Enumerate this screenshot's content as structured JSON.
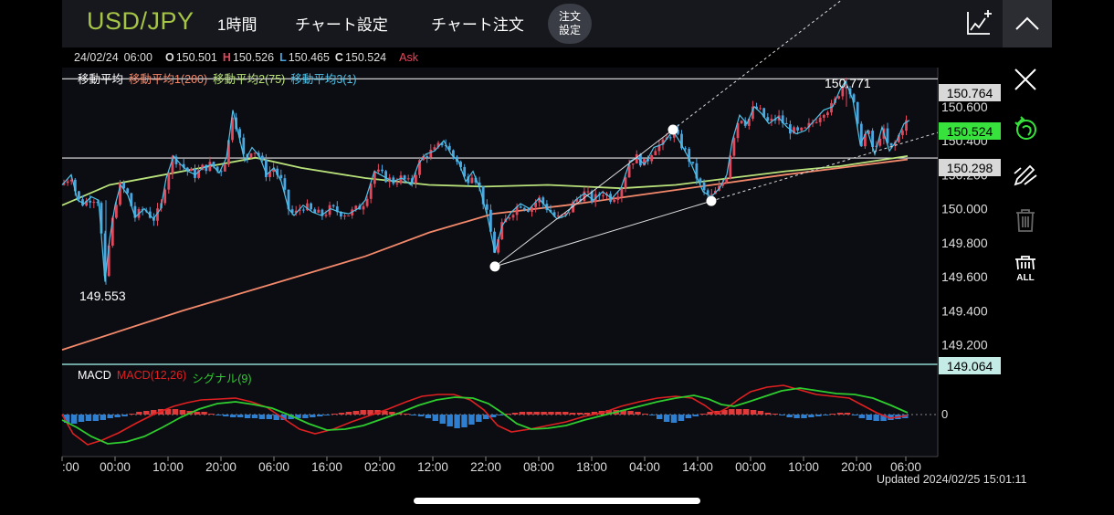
{
  "header": {
    "symbol": "USD/JPY",
    "timeframe": "1時間",
    "chart_settings": "チャート設定",
    "chart_order": "チャート注文",
    "order_settings_line1": "注文",
    "order_settings_line2": "設定"
  },
  "info_bar": {
    "date": "24/02/24",
    "time": "06:00",
    "open_label": "O",
    "open": "150.501",
    "high_label": "H",
    "high": "150.526",
    "low_label": "L",
    "low": "150.465",
    "close_label": "C",
    "close": "150.524",
    "price_type": "Ask"
  },
  "ma_legend": {
    "title": "移動平均",
    "ma1": "移動平均1(200)",
    "ma2": "移動平均2(75)",
    "ma3": "移動平均3(1)"
  },
  "macd_legend": {
    "title": "MACD",
    "macd": "MACD(12,26)",
    "signal": "シグナル(9)"
  },
  "annotations": {
    "high_label": "150.771",
    "low_label": "149.553"
  },
  "price_boxes": {
    "line_high": "150.764",
    "current": "150.524",
    "line_low": "150.298",
    "macd_top": "149.064"
  },
  "macd_zero_label": "0",
  "updated": "Updated  2024/02/25 15:01:11",
  "colors": {
    "ma1": "#f4896b",
    "ma2": "#b9e27a",
    "ma3": "#4fc3e8",
    "bull": "#e2495d",
    "bear": "#4ba6e0",
    "macd": "#e02020",
    "signal": "#2ecc2e",
    "hist_pos": "#e03a3a",
    "hist_neg": "#2f7fd0",
    "current_price": "#37e23c",
    "symbol": "#a6c445"
  },
  "icons": {
    "add_indicator": "chart-add-icon",
    "collapse": "chevron-up-icon",
    "close": "close-icon",
    "magnet": "magnet-icon",
    "draw": "pencil-draw-icon",
    "delete": "trash-icon",
    "delete_all": "trash-all-icon",
    "delete_all_label": "ALL"
  },
  "chart_data": {
    "type": "candlestick",
    "y_ticks": [
      "150.600",
      "150.400",
      "150.200",
      "150.000",
      "149.800",
      "149.600",
      "149.400",
      "149.200"
    ],
    "y_tick_values": [
      150.6,
      150.4,
      150.2,
      150.0,
      149.8,
      149.6,
      149.4,
      149.2
    ],
    "ylim": [
      149.09,
      150.83
    ],
    "x_ticks": [
      ":00",
      "00:00",
      "10:00",
      "20:00",
      "06:00",
      "16:00",
      "02:00",
      "12:00",
      "22:00",
      "08:00",
      "18:00",
      "04:00",
      "14:00",
      "00:00",
      "10:00",
      "20:00",
      "06:00"
    ],
    "horizontal_lines": [
      150.764,
      150.298
    ],
    "last_close": 150.524,
    "channel": {
      "upper": [
        [
          542,
          149.66
        ],
        [
          737,
          150.465
        ]
      ],
      "lower": [
        [
          542,
          149.66
        ],
        [
          779,
          150.045
        ]
      ],
      "extended_to": 1027
    },
    "price_path": [
      [
        68,
        150.14
      ],
      [
        78,
        150.2
      ],
      [
        85,
        150.05
      ],
      [
        92,
        150.03
      ],
      [
        100,
        150.07
      ],
      [
        108,
        150.05
      ],
      [
        115,
        149.57
      ],
      [
        120,
        149.82
      ],
      [
        126,
        150.02
      ],
      [
        132,
        150.14
      ],
      [
        140,
        150.08
      ],
      [
        148,
        149.95
      ],
      [
        158,
        150.0
      ],
      [
        168,
        149.94
      ],
      [
        176,
        150.0
      ],
      [
        182,
        150.18
      ],
      [
        190,
        150.31
      ],
      [
        198,
        150.26
      ],
      [
        206,
        150.22
      ],
      [
        214,
        150.2
      ],
      [
        222,
        150.24
      ],
      [
        232,
        150.26
      ],
      [
        240,
        150.21
      ],
      [
        248,
        150.3
      ],
      [
        255,
        150.58
      ],
      [
        262,
        150.42
      ],
      [
        268,
        150.28
      ],
      [
        276,
        150.36
      ],
      [
        284,
        150.31
      ],
      [
        292,
        150.2
      ],
      [
        300,
        150.24
      ],
      [
        308,
        150.16
      ],
      [
        316,
        150.0
      ],
      [
        322,
        149.96
      ],
      [
        332,
        150.02
      ],
      [
        342,
        149.98
      ],
      [
        352,
        149.96
      ],
      [
        362,
        150.0
      ],
      [
        372,
        149.98
      ],
      [
        382,
        149.97
      ],
      [
        392,
        150.0
      ],
      [
        400,
        150.05
      ],
      [
        410,
        150.22
      ],
      [
        420,
        150.19
      ],
      [
        430,
        150.16
      ],
      [
        440,
        150.18
      ],
      [
        450,
        150.14
      ],
      [
        458,
        150.26
      ],
      [
        466,
        150.32
      ],
      [
        476,
        150.34
      ],
      [
        486,
        150.4
      ],
      [
        494,
        150.32
      ],
      [
        502,
        150.28
      ],
      [
        510,
        150.16
      ],
      [
        518,
        150.22
      ],
      [
        526,
        150.11
      ],
      [
        534,
        149.95
      ],
      [
        542,
        149.74
      ],
      [
        550,
        149.9
      ],
      [
        560,
        149.98
      ],
      [
        570,
        150.03
      ],
      [
        580,
        150.0
      ],
      [
        590,
        150.06
      ],
      [
        600,
        150.0
      ],
      [
        610,
        149.94
      ],
      [
        620,
        149.96
      ],
      [
        630,
        150.05
      ],
      [
        640,
        150.09
      ],
      [
        650,
        150.05
      ],
      [
        660,
        150.1
      ],
      [
        670,
        150.06
      ],
      [
        680,
        150.12
      ],
      [
        690,
        150.28
      ],
      [
        698,
        150.3
      ],
      [
        706,
        150.26
      ],
      [
        716,
        150.36
      ],
      [
        726,
        150.38
      ],
      [
        737,
        150.46
      ],
      [
        746,
        150.38
      ],
      [
        754,
        150.3
      ],
      [
        762,
        150.2
      ],
      [
        770,
        150.1
      ],
      [
        779,
        150.07
      ],
      [
        788,
        150.12
      ],
      [
        796,
        150.2
      ],
      [
        802,
        150.4
      ],
      [
        810,
        150.55
      ],
      [
        818,
        150.5
      ],
      [
        826,
        150.6
      ],
      [
        834,
        150.56
      ],
      [
        842,
        150.5
      ],
      [
        852,
        150.54
      ],
      [
        862,
        150.48
      ],
      [
        872,
        150.44
      ],
      [
        882,
        150.46
      ],
      [
        892,
        150.52
      ],
      [
        902,
        150.58
      ],
      [
        912,
        150.6
      ],
      [
        920,
        150.7
      ],
      [
        926,
        150.75
      ],
      [
        934,
        150.64
      ],
      [
        942,
        150.38
      ],
      [
        950,
        150.46
      ],
      [
        958,
        150.32
      ],
      [
        966,
        150.48
      ],
      [
        974,
        150.34
      ],
      [
        982,
        150.4
      ],
      [
        990,
        150.5
      ],
      [
        996,
        150.52
      ]
    ],
    "ma1_path": [
      [
        68,
        149.17
      ],
      [
        200,
        149.4
      ],
      [
        300,
        149.56
      ],
      [
        400,
        149.72
      ],
      [
        470,
        149.86
      ],
      [
        540,
        149.97
      ],
      [
        620,
        150.02
      ],
      [
        700,
        150.08
      ],
      [
        780,
        150.14
      ],
      [
        860,
        150.2
      ],
      [
        920,
        150.24
      ],
      [
        994,
        150.29
      ]
    ],
    "ma2_path": [
      [
        68,
        150.02
      ],
      [
        120,
        150.14
      ],
      [
        180,
        150.2
      ],
      [
        240,
        150.26
      ],
      [
        280,
        150.3
      ],
      [
        330,
        150.24
      ],
      [
        400,
        150.18
      ],
      [
        470,
        150.14
      ],
      [
        530,
        150.13
      ],
      [
        600,
        150.14
      ],
      [
        680,
        150.12
      ],
      [
        740,
        150.14
      ],
      [
        800,
        150.18
      ],
      [
        860,
        150.22
      ],
      [
        920,
        150.25
      ],
      [
        994,
        150.31
      ]
    ],
    "macd_path": [
      [
        68,
        454
      ],
      [
        80,
        475
      ],
      [
        96,
        487
      ],
      [
        112,
        482
      ],
      [
        130,
        474
      ],
      [
        150,
        463
      ],
      [
        170,
        453
      ],
      [
        190,
        445
      ],
      [
        205,
        441
      ],
      [
        220,
        438
      ],
      [
        240,
        437
      ],
      [
        258,
        436
      ],
      [
        275,
        440
      ],
      [
        292,
        446
      ],
      [
        310,
        458
      ],
      [
        328,
        470
      ],
      [
        345,
        475
      ],
      [
        365,
        470
      ],
      [
        385,
        462
      ],
      [
        405,
        455
      ],
      [
        425,
        448
      ],
      [
        445,
        440
      ],
      [
        462,
        434
      ],
      [
        480,
        432
      ],
      [
        497,
        432
      ],
      [
        515,
        438
      ],
      [
        530,
        449
      ],
      [
        545,
        466
      ],
      [
        560,
        473
      ],
      [
        580,
        470
      ],
      [
        600,
        466
      ],
      [
        620,
        462
      ],
      [
        640,
        456
      ],
      [
        660,
        452
      ],
      [
        680,
        445
      ],
      [
        700,
        440
      ],
      [
        720,
        436
      ],
      [
        740,
        434
      ],
      [
        758,
        436
      ],
      [
        772,
        444
      ],
      [
        784,
        453
      ],
      [
        796,
        447
      ],
      [
        808,
        438
      ],
      [
        822,
        429
      ],
      [
        840,
        424
      ],
      [
        858,
        422
      ],
      [
        876,
        427
      ],
      [
        894,
        432
      ],
      [
        912,
        434
      ],
      [
        930,
        436
      ],
      [
        945,
        444
      ],
      [
        960,
        452
      ],
      [
        975,
        458
      ],
      [
        994,
        455
      ]
    ],
    "signal_path": [
      [
        68,
        460
      ],
      [
        84,
        468
      ],
      [
        100,
        478
      ],
      [
        118,
        486
      ],
      [
        138,
        484
      ],
      [
        158,
        478
      ],
      [
        178,
        468
      ],
      [
        198,
        457
      ],
      [
        218,
        448
      ],
      [
        238,
        442
      ],
      [
        258,
        440
      ],
      [
        278,
        443
      ],
      [
        298,
        447
      ],
      [
        318,
        455
      ],
      [
        338,
        464
      ],
      [
        358,
        471
      ],
      [
        378,
        470
      ],
      [
        398,
        466
      ],
      [
        418,
        459
      ],
      [
        438,
        452
      ],
      [
        458,
        444
      ],
      [
        478,
        438
      ],
      [
        498,
        435
      ],
      [
        518,
        436
      ],
      [
        535,
        442
      ],
      [
        550,
        452
      ],
      [
        566,
        464
      ],
      [
        582,
        470
      ],
      [
        600,
        469
      ],
      [
        620,
        466
      ],
      [
        640,
        460
      ],
      [
        660,
        455
      ],
      [
        680,
        450
      ],
      [
        700,
        445
      ],
      [
        720,
        440
      ],
      [
        740,
        436
      ],
      [
        760,
        433
      ],
      [
        776,
        437
      ],
      [
        790,
        443
      ],
      [
        804,
        445
      ],
      [
        820,
        440
      ],
      [
        838,
        434
      ],
      [
        856,
        428
      ],
      [
        876,
        425
      ],
      [
        896,
        428
      ],
      [
        916,
        431
      ],
      [
        936,
        432
      ],
      [
        956,
        436
      ],
      [
        976,
        444
      ],
      [
        994,
        452
      ]
    ],
    "macd_zero_y": 454,
    "histogram": [
      -9,
      -10,
      -8,
      -7,
      -7,
      -6,
      -4,
      -3,
      -2,
      1,
      3,
      4,
      5,
      6,
      6,
      6,
      5,
      4,
      3,
      3,
      1,
      -1,
      -2,
      -3,
      -3,
      -4,
      -4,
      -5,
      -5,
      -6,
      -6,
      -5,
      -4,
      -4,
      -3,
      -2,
      -1,
      1,
      2,
      3,
      4,
      5,
      5,
      5,
      4,
      3,
      2,
      1,
      -1,
      -2,
      -4,
      -7,
      -10,
      -13,
      -15,
      -14,
      -11,
      -8,
      -5,
      -3,
      -1,
      1,
      2,
      3,
      3,
      3,
      3,
      3,
      3,
      3,
      2,
      2,
      2,
      3,
      4,
      5,
      5,
      5,
      4,
      3,
      1,
      -1,
      -5,
      -8,
      -9,
      -7,
      -4,
      -2,
      1,
      3,
      4,
      5,
      6,
      6,
      6,
      5,
      4,
      2,
      1,
      -1,
      -3,
      -4,
      -4,
      -3,
      -2,
      -1,
      1,
      2,
      2,
      -1,
      -4,
      -6,
      -7,
      -7,
      -6,
      -5,
      -4
    ]
  }
}
